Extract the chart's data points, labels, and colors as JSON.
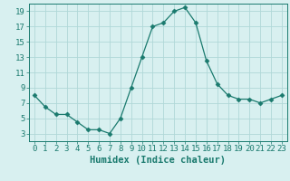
{
  "x": [
    0,
    1,
    2,
    3,
    4,
    5,
    6,
    7,
    8,
    9,
    10,
    11,
    12,
    13,
    14,
    15,
    16,
    17,
    18,
    19,
    20,
    21,
    22,
    23
  ],
  "y": [
    8,
    6.5,
    5.5,
    5.5,
    4.5,
    3.5,
    3.5,
    3,
    5,
    9,
    13,
    17,
    17.5,
    19,
    19.5,
    17.5,
    12.5,
    9.5,
    8,
    7.5,
    7.5,
    7,
    7.5,
    8
  ],
  "xlabel": "Humidex (Indice chaleur)",
  "ylim": [
    2,
    20
  ],
  "xlim": [
    -0.5,
    23.5
  ],
  "yticks": [
    3,
    5,
    7,
    9,
    11,
    13,
    15,
    17,
    19
  ],
  "xticks": [
    0,
    1,
    2,
    3,
    4,
    5,
    6,
    7,
    8,
    9,
    10,
    11,
    12,
    13,
    14,
    15,
    16,
    17,
    18,
    19,
    20,
    21,
    22,
    23
  ],
  "line_color": "#1a7a6e",
  "marker": "D",
  "marker_size": 2.5,
  "bg_color": "#d8f0f0",
  "grid_color": "#b0d8d8",
  "tick_label_size": 6.5,
  "xlabel_size": 7.5
}
